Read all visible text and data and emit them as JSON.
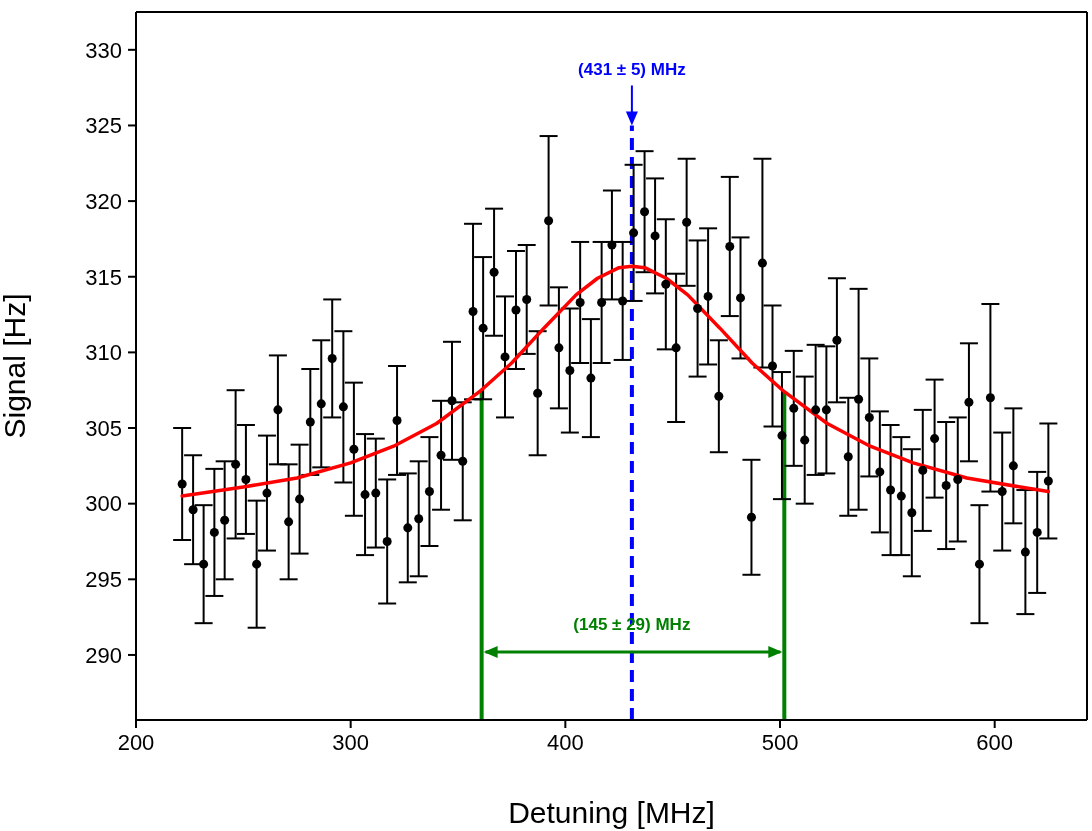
{
  "chart_data": {
    "type": "scatter",
    "xlabel": "Detuning [MHz]",
    "ylabel": "Signal [Hz]",
    "xlim": [
      200,
      643
    ],
    "ylim": [
      285.7,
      332.5
    ],
    "xticks": [
      200,
      300,
      400,
      500,
      600
    ],
    "yticks": [
      290,
      295,
      300,
      305,
      310,
      315,
      320,
      325,
      330
    ],
    "marker": "circle",
    "series": [
      {
        "color": "#000000",
        "x": [
          221.5,
          226.6,
          231.5,
          236.5,
          241.3,
          246.4,
          251.2,
          256.2,
          261.0,
          266.1,
          271.1,
          276.2,
          281.2,
          286.3,
          291.4,
          296.6,
          301.5,
          306.7,
          311.7,
          317.0,
          321.6,
          326.6,
          331.7,
          336.7,
          342.1,
          347.2,
          352.2,
          357.0,
          361.7,
          366.8,
          371.9,
          377.0,
          382.0,
          387.1,
          392.2,
          397.0,
          402.1,
          406.9,
          411.9,
          416.9,
          421.7,
          426.7,
          431.8,
          436.9,
          441.8,
          446.8,
          451.6,
          456.5,
          461.6,
          466.5,
          471.5,
          476.6,
          481.6,
          486.7,
          491.8,
          496.5,
          500.9,
          506.4,
          511.5,
          516.6,
          521.6,
          526.5,
          531.8,
          536.6,
          541.6,
          546.5,
          551.5,
          556.5,
          561.4,
          566.5,
          572.0,
          577.4,
          582.8,
          588.0,
          592.9,
          598.0,
          603.5,
          608.7,
          614.3,
          619.8,
          625.0
        ],
        "values": [
          301.3,
          299.6,
          296.0,
          298.1,
          298.9,
          302.6,
          301.6,
          296.0,
          300.7,
          306.2,
          298.8,
          300.3,
          305.4,
          306.6,
          309.6,
          306.4,
          303.6,
          300.6,
          300.7,
          297.5,
          305.5,
          298.4,
          299.0,
          300.8,
          303.2,
          306.8,
          302.8,
          312.7,
          311.6,
          315.3,
          309.7,
          312.8,
          313.5,
          307.3,
          318.7,
          310.3,
          308.8,
          313.3,
          308.3,
          313.3,
          317.1,
          313.4,
          317.9,
          319.3,
          317.7,
          314.5,
          310.3,
          318.6,
          312.9,
          313.7,
          307.1,
          317.0,
          313.6,
          299.1,
          315.9,
          309.1,
          304.5,
          306.3,
          304.2,
          306.2,
          306.2,
          310.8,
          303.1,
          306.9,
          305.7,
          302.1,
          300.9,
          300.5,
          299.4,
          302.2,
          304.3,
          301.2,
          301.6,
          306.7,
          296.0,
          307.0,
          300.8,
          302.5,
          296.8,
          298.1,
          301.5
        ],
        "errors": [
          3.7,
          3.6,
          3.9,
          4.2,
          3.9,
          4.9,
          3.6,
          4.2,
          3.8,
          3.6,
          3.8,
          3.6,
          3.5,
          4.2,
          3.9,
          5.0,
          4.4,
          4.0,
          3.6,
          4.1,
          3.6,
          3.6,
          3.8,
          3.6,
          3.6,
          3.9,
          3.9,
          5.8,
          4.7,
          4.2,
          4.0,
          3.9,
          3.6,
          4.1,
          5.6,
          4.0,
          4.1,
          4.0,
          3.9,
          4.0,
          3.6,
          3.9,
          4.5,
          4.0,
          3.8,
          4.3,
          4.9,
          4.2,
          4.5,
          4.5,
          3.7,
          4.6,
          4.0,
          3.8,
          6.9,
          4.0,
          4.2,
          3.8,
          4.2,
          4.3,
          4.2,
          4.1,
          3.9,
          7.3,
          3.9,
          4.0,
          4.3,
          3.9,
          4.2,
          4.0,
          3.9,
          4.2,
          4.1,
          3.9,
          3.9,
          6.2,
          3.9,
          3.8,
          4.1,
          4.0,
          3.8
        ]
      },
      {
        "type": "line",
        "marker": "none",
        "color": "#ff0000",
        "x": [
          221.5,
          250,
          275,
          300,
          320,
          340,
          360,
          375,
          390,
          405,
          415,
          425,
          431,
          437,
          447,
          457,
          472,
          487,
          502,
          522,
          542,
          562,
          587,
          612,
          625
        ],
        "values": [
          300.5,
          301.1,
          301.7,
          302.7,
          303.8,
          305.3,
          307.4,
          309.3,
          311.6,
          313.8,
          314.9,
          315.6,
          315.7,
          315.6,
          314.9,
          313.8,
          311.6,
          309.3,
          307.4,
          305.3,
          303.8,
          302.7,
          301.7,
          301.1,
          300.8
        ]
      }
    ],
    "ref_lines": [
      {
        "axis": "x",
        "value": 431,
        "color": "#0000ff",
        "line_style": "dashed"
      },
      {
        "axis": "x",
        "value": 361,
        "color": "#008000",
        "line_style": "solid"
      },
      {
        "axis": "x",
        "value": 502,
        "color": "#008000",
        "line_style": "solid"
      }
    ],
    "annotations": [
      {
        "text": "(431 ± 5) MHz",
        "x": 431,
        "y": 325.0
      },
      {
        "text": "(145 ± 29) MHz",
        "x": 431,
        "y": 290.2
      }
    ]
  }
}
